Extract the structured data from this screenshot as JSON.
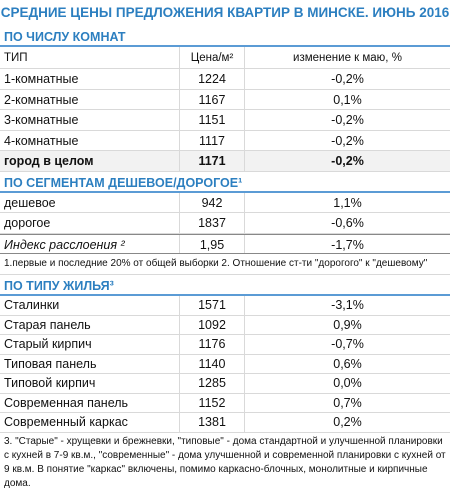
{
  "title": "СРЕДНИЕ ЦЕНЫ ПРЕДЛОЖЕНИЯ КВАРТИР В МИНСКЕ. ИЮНЬ 2016",
  "sections": [
    {
      "heading": "ПО ЧИСЛУ КОМНАТ",
      "columns": [
        "ТИП",
        "Цена/м²",
        "изменение к маю, %"
      ],
      "rows": [
        [
          "1-комнатные",
          "1224",
          "-0,2%"
        ],
        [
          "2-комнатные",
          "1167",
          "0,1%"
        ],
        [
          "3-комнатные",
          "1151",
          "-0,2%"
        ],
        [
          "4-комнатные",
          "1117",
          "-0,2%"
        ],
        [
          "город в целом",
          "1171",
          "-0,2%"
        ]
      ]
    },
    {
      "heading": "ПО СЕГМЕНТАМ ДЕШЕВОЕ/ДОРОГОЕ¹",
      "rows": [
        [
          "дешевое",
          "942",
          "1,1%"
        ],
        [
          "дорогое",
          "1837",
          "-0,6%"
        ],
        [
          "Индекс расслоения ²",
          "1,95",
          "-1,7%"
        ]
      ],
      "note": "1.первые и последние 20% от общей выборки 2. Отношение ст-ти \"дорогого\" к \"дешевому\""
    },
    {
      "heading": "ПО ТИПУ ЖИЛЬЯ³",
      "rows": [
        [
          "Сталинки",
          "1571",
          "-3,1%"
        ],
        [
          "Старая панель",
          "1092",
          "0,9%"
        ],
        [
          "Старый кирпич",
          "1176",
          "-0,7%"
        ],
        [
          "Типовая панель",
          "1140",
          "0,6%"
        ],
        [
          "Типовой кирпич",
          "1285",
          "0,0%"
        ],
        [
          "Современная панель",
          "1152",
          "0,7%"
        ],
        [
          "Современный каркас",
          "1381",
          "0,2%"
        ]
      ],
      "note": "3. \"Старые\" - хрущевки и брежневки, \"типовые\" - дома стандартной и улучшенной планировки с кухней в 7-9 кв.м., \"современные\" - дома улучшенной и современной планировки с кухней от 9 кв.м. В понятие \"каркас\" включены, помимо каркасно-блочных, монолитные и кирпичные дома."
    }
  ]
}
